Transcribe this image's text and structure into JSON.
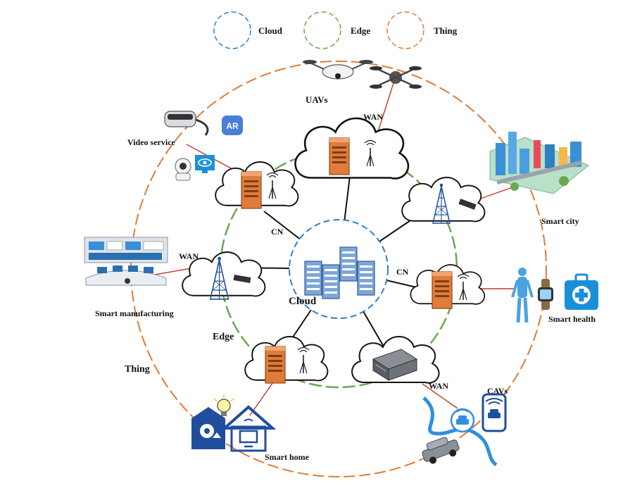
{
  "legend": [
    {
      "label": "Cloud",
      "color": "#2f7fc1"
    },
    {
      "label": "Edge",
      "color": "#6aa84f"
    },
    {
      "label": "Thing",
      "color": "#e07b39"
    }
  ],
  "labels": {
    "cloud": "Cloud",
    "edge": "Edge",
    "thing": "Thing",
    "cn_left": "CN",
    "cn_right": "CN",
    "wan_top": "WAN",
    "wan_left": "WAN",
    "wan_bottom": "WAN"
  },
  "things": {
    "uavs": "UAVs",
    "video": "Video service",
    "ar_badge": "AR",
    "smart_city": "Smart city",
    "manufacturing": "Smart manufacturing",
    "health": "Smart health",
    "home": "Smart home",
    "cavs": "CAVs"
  },
  "colors": {
    "cloud": "#2f7fc1",
    "edge": "#6aa84f",
    "thing": "#e07b39",
    "server": "#e07b39",
    "link": "#111111",
    "wan_link": "#c0392b",
    "device_blue": "#1f4e9c"
  }
}
